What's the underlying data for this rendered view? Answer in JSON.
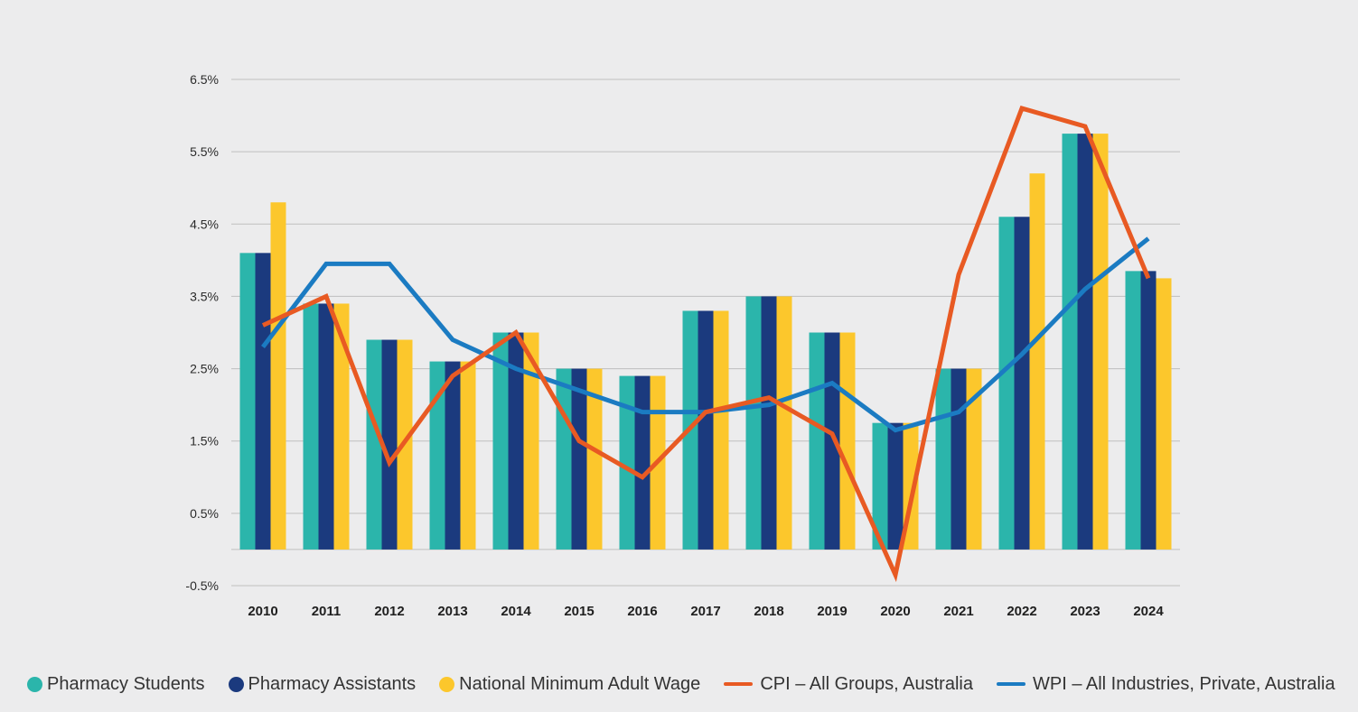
{
  "colors": {
    "background": "#ececed",
    "grid": "#bfbfbf",
    "students": "#2bb5ab",
    "assistants": "#1b3a7e",
    "minimum_wage": "#fcc72c",
    "cpi": "#e85a23",
    "wpi": "#1b7bc2"
  },
  "chart_data": {
    "type": "bar",
    "title": "",
    "xlabel": "",
    "ylabel": "",
    "ylim": [
      -0.5,
      6.5
    ],
    "baseline": 0,
    "yticks": [
      6.5,
      5.5,
      4.5,
      3.5,
      2.5,
      1.5,
      0.5,
      -0.5
    ],
    "ytick_labels": [
      "6.5%",
      "5.5%",
      "4.5%",
      "3.5%",
      "2.5%",
      "1.5%",
      "0.5%",
      "-0.5%"
    ],
    "grid": true,
    "legend_position": "bottom",
    "categories": [
      "2010",
      "2011",
      "2012",
      "2013",
      "2014",
      "2015",
      "2016",
      "2017",
      "2018",
      "2019",
      "2020",
      "2021",
      "2022",
      "2023",
      "2024"
    ],
    "series": [
      {
        "name": "Pharmacy Students",
        "kind": "bar",
        "color_key": "students",
        "values": [
          4.1,
          3.4,
          2.9,
          2.6,
          3.0,
          2.5,
          2.4,
          3.3,
          3.5,
          3.0,
          1.75,
          2.5,
          4.6,
          5.75,
          3.85
        ]
      },
      {
        "name": "Pharmacy Assistants",
        "kind": "bar",
        "color_key": "assistants",
        "values": [
          4.1,
          3.4,
          2.9,
          2.6,
          3.0,
          2.5,
          2.4,
          3.3,
          3.5,
          3.0,
          1.75,
          2.5,
          4.6,
          5.75,
          3.85
        ]
      },
      {
        "name": "National Minimum Adult Wage",
        "kind": "bar",
        "color_key": "minimum_wage",
        "values": [
          4.8,
          3.4,
          2.9,
          2.6,
          3.0,
          2.5,
          2.4,
          3.3,
          3.5,
          3.0,
          1.75,
          2.5,
          5.2,
          5.75,
          3.75
        ]
      },
      {
        "name": "CPI – All Groups, Australia",
        "kind": "line",
        "color_key": "cpi",
        "values": [
          3.1,
          3.5,
          1.2,
          2.4,
          3.0,
          1.5,
          1.0,
          1.9,
          2.1,
          1.6,
          -0.35,
          3.8,
          6.1,
          5.85,
          3.75
        ]
      },
      {
        "name": "WPI – All Industries, Private, Australia",
        "kind": "line",
        "color_key": "wpi",
        "values": [
          2.8,
          3.95,
          3.95,
          2.9,
          2.5,
          2.2,
          1.9,
          1.9,
          2.0,
          2.3,
          1.65,
          1.9,
          2.7,
          3.6,
          4.3
        ]
      }
    ]
  },
  "legend": {
    "items": [
      {
        "label": "Pharmacy Students",
        "marker": "dot",
        "color_key": "students"
      },
      {
        "label": "Pharmacy Assistants",
        "marker": "dot",
        "color_key": "assistants"
      },
      {
        "label": "National Minimum Adult Wage",
        "marker": "dot",
        "color_key": "minimum_wage"
      },
      {
        "label": "CPI – All Groups, Australia",
        "marker": "line",
        "color_key": "cpi"
      },
      {
        "label": "WPI – All Industries, Private, Australia",
        "marker": "line",
        "color_key": "wpi"
      }
    ]
  }
}
